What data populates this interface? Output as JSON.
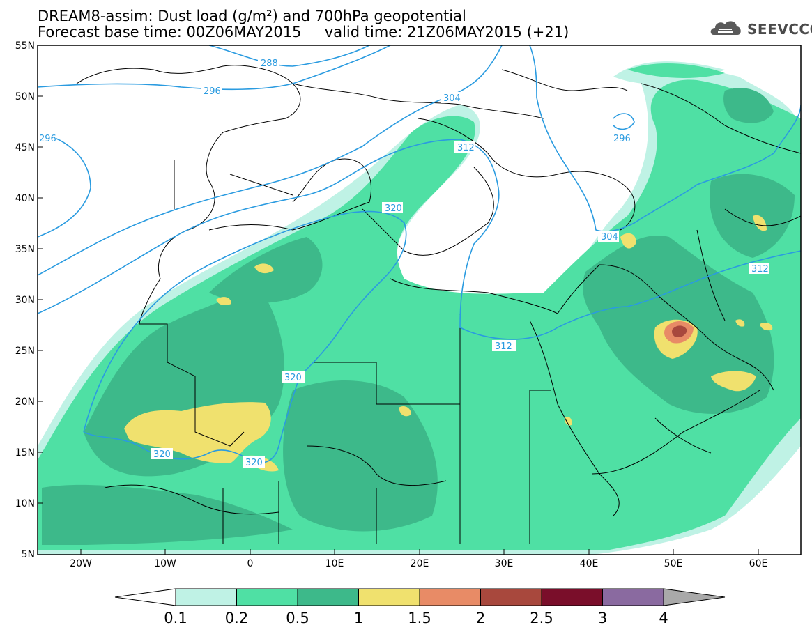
{
  "header": {
    "title_line1": "DREAM8-assim: Dust load (g/m²) and 700hPa geopotential",
    "title_line2": "Forecast base time: 00Z06MAY2015     valid time: 21Z06MAY2015 (+21)",
    "logo_text": "SEEVCCC"
  },
  "map": {
    "lat_labels": [
      "55N",
      "50N",
      "45N",
      "40N",
      "35N",
      "30N",
      "25N",
      "20N",
      "15N",
      "10N",
      "5N"
    ],
    "lon_labels": [
      "20W",
      "10W",
      "0",
      "10E",
      "20E",
      "30E",
      "40E",
      "50E",
      "60E"
    ],
    "contour_labels": [
      "288",
      "296",
      "304",
      "296",
      "296",
      "312",
      "320",
      "304",
      "312",
      "312",
      "320",
      "320",
      "320"
    ]
  },
  "colorbar": {
    "ticks": [
      "0.1",
      "0.2",
      "0.5",
      "1",
      "1.5",
      "2",
      "2.5",
      "3",
      "4"
    ],
    "colors": [
      "#bff2e5",
      "#4fe0a4",
      "#3db98a",
      "#f0e16e",
      "#e88b66",
      "#a8483d",
      "#7a0e2a",
      "#8a6aa0"
    ],
    "under_color": "#ffffff",
    "over_color": "#a9a9a9"
  },
  "colors": {
    "contour": "#2a9be0",
    "border": "#000000",
    "dust_light": "#bff2e5",
    "dust_mid": "#4fe0a4",
    "dust_dark": "#3db98a",
    "dust_yellow": "#f0e16e",
    "dust_orange": "#e88b66",
    "dust_red": "#a8483d"
  }
}
